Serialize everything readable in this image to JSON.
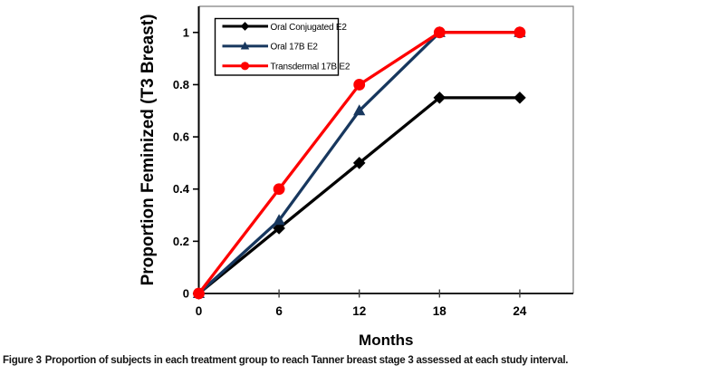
{
  "figure": {
    "caption_label": "Figure 3",
    "caption_text": "Proportion of subjects in each treatment group to reach Tanner breast stage 3 assessed at each study interval."
  },
  "colors": {
    "background": "#ffffff",
    "axis": "#000000",
    "plot_border": "#808080",
    "tick_text": "#000000",
    "series_black": "#000000",
    "series_navy": "#17375E",
    "series_red": "#FE0000"
  },
  "chart_data": {
    "type": "line",
    "title": "",
    "xlabel": "Months",
    "ylabel": "Proportion Feminized (T3 Breast)",
    "x": [
      0,
      6,
      12,
      18,
      24
    ],
    "x_tick_labels": [
      "0",
      "6",
      "12",
      "18",
      "24"
    ],
    "y_ticks": [
      0,
      0.2,
      0.4,
      0.6,
      0.8,
      1
    ],
    "y_tick_labels": [
      "0",
      "0.2",
      "0.4",
      "0.6",
      "0.8",
      "1"
    ],
    "xlim": [
      0,
      28
    ],
    "ylim": [
      0,
      1.1
    ],
    "grid": false,
    "legend_position": "top-left-inside",
    "series": [
      {
        "name": "Oral Conjugated E2",
        "color": "#000000",
        "marker": "diamond",
        "values": [
          0,
          0.25,
          0.5,
          0.75,
          0.75
        ]
      },
      {
        "name": "Oral 17B E2",
        "color": "#17375E",
        "marker": "triangle",
        "values": [
          0,
          0.28,
          0.7,
          1,
          1
        ]
      },
      {
        "name": "Transdermal 17B E2",
        "color": "#FE0000",
        "marker": "circle",
        "values": [
          0,
          0.4,
          0.8,
          1,
          1
        ]
      }
    ]
  }
}
